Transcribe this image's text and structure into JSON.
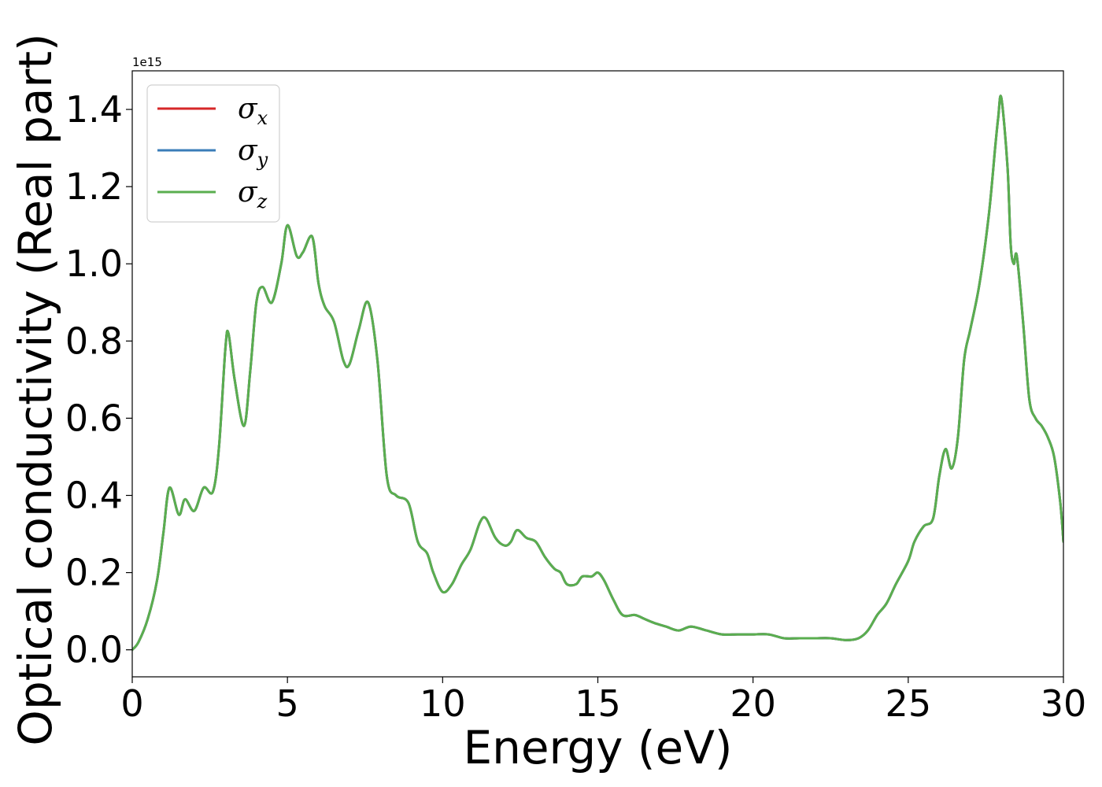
{
  "chart_data": {
    "type": "line",
    "title": "",
    "xlabel": "Energy (eV)",
    "ylabel": "Optical conductivity (Real part)",
    "y_offset_label": "1e15",
    "xlim": [
      0,
      30
    ],
    "ylim": [
      -0.07,
      1.5
    ],
    "x_ticks": [
      0,
      5,
      10,
      15,
      20,
      25,
      30
    ],
    "x_tick_labels": [
      "0",
      "5",
      "10",
      "15",
      "20",
      "25",
      "30"
    ],
    "y_ticks": [
      0.0,
      0.2,
      0.4,
      0.6,
      0.8,
      1.0,
      1.2,
      1.4
    ],
    "y_tick_labels": [
      "0.0",
      "0.2",
      "0.4",
      "0.6",
      "0.8",
      "1.0",
      "1.2",
      "1.4"
    ],
    "grid": false,
    "legend_position": "top-left",
    "x": [
      0,
      0.2,
      0.5,
      0.8,
      1.0,
      1.2,
      1.5,
      1.7,
      2.0,
      2.3,
      2.6,
      2.8,
      3.0,
      3.1,
      3.3,
      3.6,
      3.8,
      4.0,
      4.2,
      4.5,
      4.8,
      5.0,
      5.3,
      5.5,
      5.8,
      6.0,
      6.2,
      6.5,
      6.8,
      7.0,
      7.3,
      7.6,
      7.9,
      8.2,
      8.5,
      8.9,
      9.2,
      9.5,
      9.7,
      10.0,
      10.3,
      10.6,
      10.9,
      11.2,
      11.4,
      11.7,
      12.0,
      12.2,
      12.4,
      12.7,
      13.0,
      13.3,
      13.6,
      13.8,
      14.0,
      14.3,
      14.5,
      14.8,
      15.0,
      15.2,
      15.5,
      15.8,
      16.2,
      16.5,
      16.8,
      17.2,
      17.6,
      18.0,
      18.5,
      19.0,
      19.5,
      20.0,
      20.5,
      21.0,
      21.5,
      22.0,
      22.5,
      23.0,
      23.4,
      23.7,
      24.0,
      24.3,
      24.6,
      25.0,
      25.2,
      25.5,
      25.8,
      26.0,
      26.2,
      26.4,
      26.6,
      26.8,
      27.0,
      27.3,
      27.6,
      27.8,
      27.9,
      28.0,
      28.2,
      28.3,
      28.4,
      28.5,
      28.7,
      28.9,
      29.1,
      29.3,
      29.5,
      29.7,
      29.9,
      30.0
    ],
    "series": [
      {
        "name": "σx",
        "color": "#d62728",
        "values": [
          0.0,
          0.02,
          0.08,
          0.18,
          0.3,
          0.42,
          0.35,
          0.39,
          0.36,
          0.42,
          0.41,
          0.53,
          0.78,
          0.82,
          0.7,
          0.58,
          0.72,
          0.9,
          0.94,
          0.9,
          1.0,
          1.1,
          1.02,
          1.03,
          1.07,
          0.95,
          0.89,
          0.85,
          0.75,
          0.74,
          0.83,
          0.9,
          0.75,
          0.45,
          0.4,
          0.38,
          0.28,
          0.25,
          0.2,
          0.15,
          0.17,
          0.22,
          0.26,
          0.33,
          0.34,
          0.29,
          0.27,
          0.28,
          0.31,
          0.29,
          0.28,
          0.24,
          0.21,
          0.2,
          0.17,
          0.17,
          0.19,
          0.19,
          0.2,
          0.18,
          0.13,
          0.09,
          0.09,
          0.08,
          0.07,
          0.06,
          0.05,
          0.06,
          0.05,
          0.04,
          0.04,
          0.04,
          0.04,
          0.03,
          0.03,
          0.03,
          0.03,
          0.025,
          0.03,
          0.05,
          0.09,
          0.12,
          0.17,
          0.23,
          0.28,
          0.32,
          0.34,
          0.45,
          0.52,
          0.47,
          0.55,
          0.75,
          0.83,
          0.95,
          1.13,
          1.3,
          1.38,
          1.43,
          1.25,
          1.05,
          1.0,
          1.02,
          0.85,
          0.65,
          0.6,
          0.58,
          0.55,
          0.5,
          0.38,
          0.28
        ]
      },
      {
        "name": "σy",
        "color": "#3a7db8",
        "values": [
          0.0,
          0.02,
          0.08,
          0.18,
          0.3,
          0.42,
          0.35,
          0.39,
          0.36,
          0.42,
          0.41,
          0.53,
          0.78,
          0.82,
          0.7,
          0.58,
          0.72,
          0.9,
          0.94,
          0.9,
          1.0,
          1.1,
          1.02,
          1.03,
          1.07,
          0.95,
          0.89,
          0.85,
          0.75,
          0.74,
          0.83,
          0.9,
          0.75,
          0.45,
          0.4,
          0.38,
          0.28,
          0.25,
          0.2,
          0.15,
          0.17,
          0.22,
          0.26,
          0.33,
          0.34,
          0.29,
          0.27,
          0.28,
          0.31,
          0.29,
          0.28,
          0.24,
          0.21,
          0.2,
          0.17,
          0.17,
          0.19,
          0.19,
          0.2,
          0.18,
          0.13,
          0.09,
          0.09,
          0.08,
          0.07,
          0.06,
          0.05,
          0.06,
          0.05,
          0.04,
          0.04,
          0.04,
          0.04,
          0.03,
          0.03,
          0.03,
          0.03,
          0.025,
          0.03,
          0.05,
          0.09,
          0.12,
          0.17,
          0.23,
          0.28,
          0.32,
          0.34,
          0.45,
          0.52,
          0.47,
          0.55,
          0.75,
          0.83,
          0.95,
          1.13,
          1.3,
          1.38,
          1.43,
          1.25,
          1.05,
          1.0,
          1.02,
          0.85,
          0.65,
          0.6,
          0.58,
          0.55,
          0.5,
          0.38,
          0.28
        ]
      },
      {
        "name": "σz",
        "color": "#5aae4f",
        "values": [
          0.0,
          0.02,
          0.08,
          0.18,
          0.3,
          0.42,
          0.35,
          0.39,
          0.36,
          0.42,
          0.41,
          0.53,
          0.78,
          0.82,
          0.7,
          0.58,
          0.72,
          0.9,
          0.94,
          0.9,
          1.0,
          1.1,
          1.02,
          1.03,
          1.07,
          0.95,
          0.89,
          0.85,
          0.75,
          0.74,
          0.83,
          0.9,
          0.75,
          0.45,
          0.4,
          0.38,
          0.28,
          0.25,
          0.2,
          0.15,
          0.17,
          0.22,
          0.26,
          0.33,
          0.34,
          0.29,
          0.27,
          0.28,
          0.31,
          0.29,
          0.28,
          0.24,
          0.21,
          0.2,
          0.17,
          0.17,
          0.19,
          0.19,
          0.2,
          0.18,
          0.13,
          0.09,
          0.09,
          0.08,
          0.07,
          0.06,
          0.05,
          0.06,
          0.05,
          0.04,
          0.04,
          0.04,
          0.04,
          0.03,
          0.03,
          0.03,
          0.03,
          0.025,
          0.03,
          0.05,
          0.09,
          0.12,
          0.17,
          0.23,
          0.28,
          0.32,
          0.34,
          0.45,
          0.52,
          0.47,
          0.55,
          0.75,
          0.83,
          0.95,
          1.13,
          1.3,
          1.38,
          1.43,
          1.25,
          1.05,
          1.0,
          1.02,
          0.85,
          0.65,
          0.6,
          0.58,
          0.55,
          0.5,
          0.38,
          0.28
        ]
      }
    ]
  }
}
